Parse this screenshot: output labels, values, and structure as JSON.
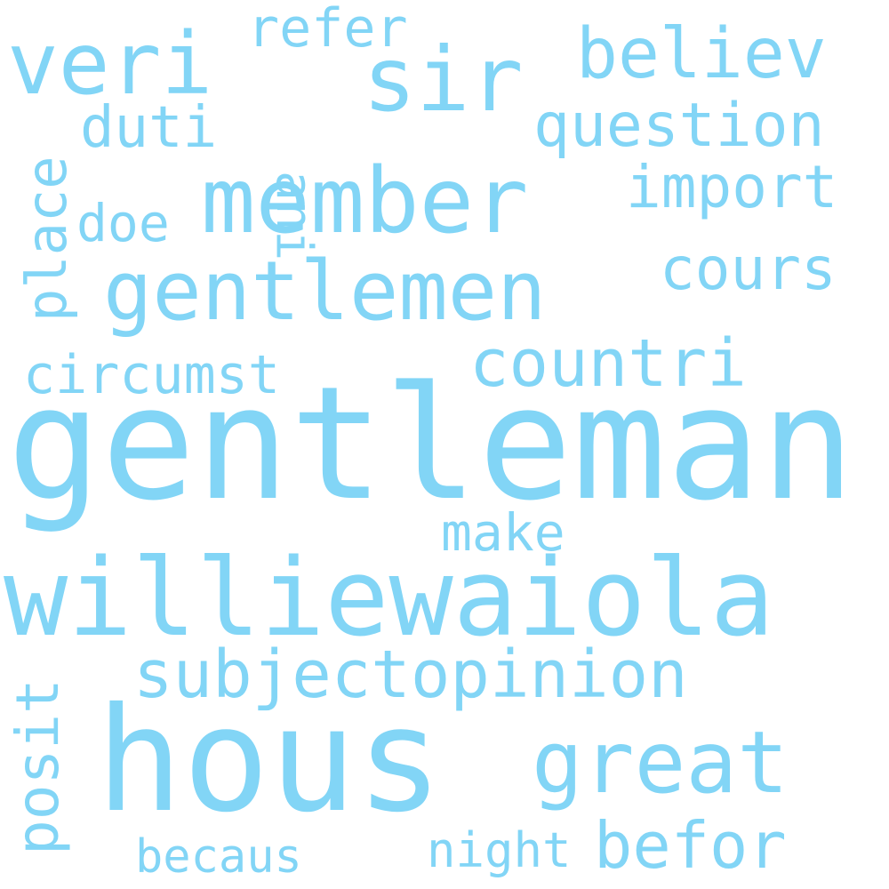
{
  "word_cloud": {
    "color": "#82d5f6",
    "background": "#ffffff",
    "words": {
      "gentleman": "gentleman",
      "williewaiola": "williewaiola",
      "hous": "hous",
      "member": "member",
      "gentlemen": "gentlemen",
      "sir": "sir",
      "veri": "veri",
      "great": "great",
      "believ": "believ",
      "subjectopinion": "subjectopinion",
      "countri": "countri",
      "question": "question",
      "import": "import",
      "cours": "cours",
      "befor": "befor",
      "duti": "duti",
      "circumst": "circumst",
      "refer": "refer",
      "make": "make",
      "doe": "doe",
      "night": "night",
      "becaus": "becaus",
      "place": "place",
      "posit": "posit",
      "ani": "ani"
    }
  }
}
